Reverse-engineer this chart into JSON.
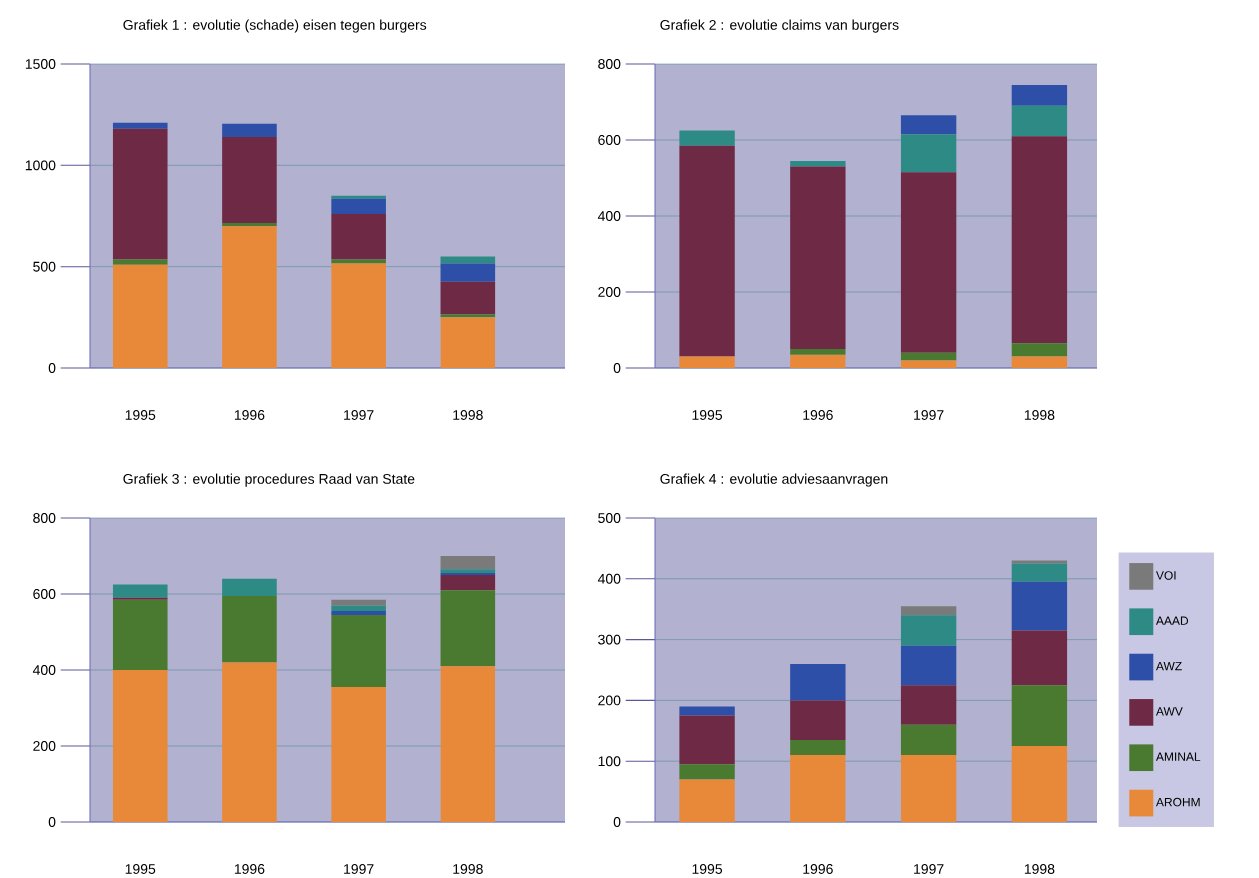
{
  "chart_data": [
    {
      "type": "bar",
      "stacked": true,
      "title": "Grafiek 1 : evolutie (schade) eisen tegen burgers",
      "categories": [
        "1995",
        "1996",
        "1997",
        "1998"
      ],
      "ylim": [
        0,
        1500
      ],
      "yticks": [
        0,
        500,
        1000,
        1500
      ],
      "grid": "y",
      "series": [
        {
          "color": "#e8893a",
          "values": [
            510,
            700,
            515,
            250
          ]
        },
        {
          "color": "#4a7a30",
          "values": [
            25,
            15,
            20,
            15
          ]
        },
        {
          "color": "#6e2a45",
          "values": [
            645,
            425,
            225,
            160
          ]
        },
        {
          "color": "#2e4fa8",
          "values": [
            30,
            65,
            75,
            90
          ]
        },
        {
          "color": "#2e8a84",
          "values": [
            0,
            0,
            15,
            35
          ]
        }
      ]
    },
    {
      "type": "bar",
      "stacked": true,
      "title": "Grafiek 2 : evolutie claims van burgers",
      "categories": [
        "1995",
        "1996",
        "1997",
        "1998"
      ],
      "ylim": [
        0,
        800
      ],
      "yticks": [
        0,
        200,
        400,
        600,
        800
      ],
      "grid": "y",
      "series": [
        {
          "color": "#e8893a",
          "values": [
            30,
            35,
            20,
            30
          ]
        },
        {
          "color": "#4a7a30",
          "values": [
            0,
            15,
            20,
            35
          ]
        },
        {
          "color": "#6e2a45",
          "values": [
            555,
            480,
            475,
            545
          ]
        },
        {
          "color": "#2e8a84",
          "values": [
            40,
            15,
            100,
            80
          ]
        },
        {
          "color": "#2e4fa8",
          "values": [
            0,
            0,
            50,
            55
          ]
        }
      ]
    },
    {
      "type": "bar",
      "stacked": true,
      "title": "Grafiek 3 : evolutie procedures Raad van State",
      "categories": [
        "1995",
        "1996",
        "1997",
        "1998"
      ],
      "ylim": [
        0,
        800
      ],
      "yticks": [
        0,
        200,
        400,
        600,
        800
      ],
      "grid": "y",
      "series": [
        {
          "color": "#e8893a",
          "values": [
            400,
            420,
            355,
            410
          ]
        },
        {
          "color": "#4a7a30",
          "values": [
            185,
            175,
            190,
            200
          ]
        },
        {
          "color": "#6e2a45",
          "values": [
            5,
            0,
            0,
            40
          ]
        },
        {
          "color": "#2e4fa8",
          "values": [
            0,
            0,
            10,
            5
          ]
        },
        {
          "color": "#2e8a84",
          "values": [
            35,
            45,
            15,
            10
          ]
        },
        {
          "color": "#7a7a7a",
          "values": [
            0,
            0,
            15,
            35
          ]
        }
      ]
    },
    {
      "type": "bar",
      "stacked": true,
      "title": "Grafiek 4 : evolutie adviesaanvragen",
      "categories": [
        "1995",
        "1996",
        "1997",
        "1998"
      ],
      "ylim": [
        0,
        500
      ],
      "yticks": [
        0,
        100,
        200,
        300,
        400,
        500
      ],
      "grid": "y",
      "legend": "right",
      "series": [
        {
          "name": "AROHM",
          "color": "#e8893a",
          "values": [
            70,
            110,
            110,
            125
          ]
        },
        {
          "name": "AMINAL",
          "color": "#4a7a30",
          "values": [
            25,
            25,
            50,
            100
          ]
        },
        {
          "name": "AWV",
          "color": "#6e2a45",
          "values": [
            80,
            65,
            65,
            90
          ]
        },
        {
          "name": "AWZ",
          "color": "#2e4fa8",
          "values": [
            15,
            60,
            65,
            80
          ]
        },
        {
          "name": "AAAD",
          "color": "#2e8a84",
          "values": [
            0,
            0,
            50,
            30
          ]
        },
        {
          "name": "VOI",
          "color": "#7a7a7a",
          "values": [
            0,
            0,
            15,
            5
          ]
        }
      ]
    }
  ]
}
